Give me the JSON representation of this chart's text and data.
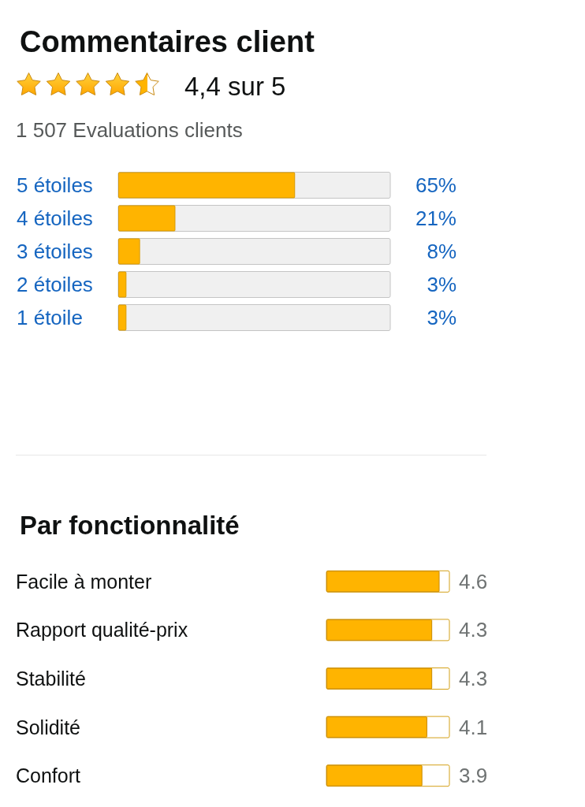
{
  "chart_data": [
    {
      "type": "bar",
      "title": "Commentaires client",
      "subtitle": "4,4 sur 5",
      "annotations": [
        "1 507 Evaluations clients"
      ],
      "orientation": "horizontal",
      "categories": [
        "5 étoiles",
        "4 étoiles",
        "3 étoiles",
        "2 étoiles",
        "1 étoile"
      ],
      "values": [
        65,
        21,
        8,
        3,
        3
      ],
      "value_labels": [
        "65%",
        "21%",
        "8%",
        "3%",
        "3%"
      ],
      "color": "#ffb400",
      "xlim": [
        0,
        100
      ],
      "tick_labels": "y"
    },
    {
      "type": "bar",
      "title": "Par fonctionnalité",
      "orientation": "horizontal",
      "categories": [
        "Facile à monter",
        "Rapport qualité-prix",
        "Stabilité",
        "Solidité",
        "Confort"
      ],
      "values": [
        4.6,
        4.3,
        4.3,
        4.1,
        3.9
      ],
      "data_labels": true,
      "color": "#ffb400",
      "xlim": [
        0,
        5
      ],
      "tick_labels": "y"
    }
  ]
}
